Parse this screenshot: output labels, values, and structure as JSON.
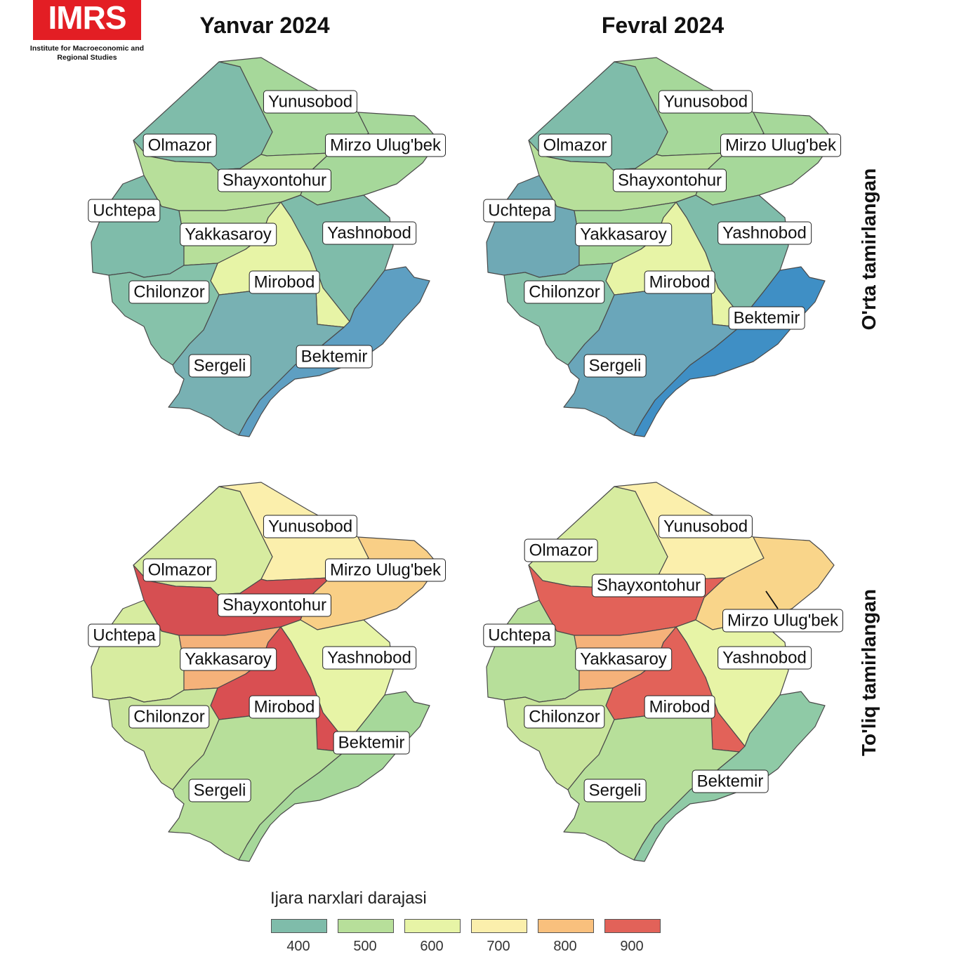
{
  "logo": {
    "text": "IMRS",
    "subtitle": "Institute for Macroeconomic and Regional Studies"
  },
  "columns": [
    "Yanvar 2024",
    "Fevral 2024"
  ],
  "rows": [
    "O'rta tamirlangan",
    "To'liq tamirlangan"
  ],
  "legend": {
    "title": "Ijara narxlari darajasi",
    "items": [
      {
        "value": "400",
        "color": "#7fbcaa"
      },
      {
        "value": "500",
        "color": "#b7df9a"
      },
      {
        "value": "600",
        "color": "#e7f4a6"
      },
      {
        "value": "700",
        "color": "#fbefac"
      },
      {
        "value": "800",
        "color": "#f9c07d"
      },
      {
        "value": "900",
        "color": "#e26259"
      }
    ]
  },
  "districts": [
    "Olmazor",
    "Yunusobod",
    "Mirzo Ulug'bek",
    "Shayxontohur",
    "Uchtepa",
    "Yakkasaroy",
    "Yashnobod",
    "Mirobod",
    "Chilonzor",
    "Bektemir",
    "Sergeli"
  ],
  "maps": [
    {
      "column": "Yanvar 2024",
      "row": "O'rta tamirlangan",
      "colors": {
        "Olmazor": "#7fbcaa",
        "Yunusobod": "#a6d89a",
        "Mirzo Ulug'bek": "#a6d89a",
        "Shayxontohur": "#b7df9a",
        "Uchtepa": "#7fbcaa",
        "Yakkasaroy": "#b7df9a",
        "Yashnobod": "#7fbcaa",
        "Mirobod": "#e7f4a6",
        "Chilonzor": "#86c2aa",
        "Bektemir": "#5e9fc2",
        "Sergeli": "#78b1b3"
      }
    },
    {
      "column": "Fevral 2024",
      "row": "O'rta tamirlangan",
      "colors": {
        "Olmazor": "#7fbcaa",
        "Yunusobod": "#a6d89a",
        "Mirzo Ulug'bek": "#a6d89a",
        "Shayxontohur": "#b7df9a",
        "Uchtepa": "#6fa9b5",
        "Yakkasaroy": "#a6d89a",
        "Yashnobod": "#7fbcaa",
        "Mirobod": "#e7f4a6",
        "Chilonzor": "#86c2aa",
        "Bektemir": "#3f8fc5",
        "Sergeli": "#6aa6ba"
      }
    },
    {
      "column": "Yanvar 2024",
      "row": "To'liq tamirlangan",
      "colors": {
        "Olmazor": "#d7ecA0",
        "Yunusobod": "#fbefac",
        "Mirzo Ulug'bek": "#f9cf86",
        "Shayxontohur": "#d64f52",
        "Uchtepa": "#d7eca0",
        "Yakkasaroy": "#f5b27a",
        "Yashnobod": "#e7f4a6",
        "Mirobod": "#d94f52",
        "Chilonzor": "#c9e59c",
        "Bektemir": "#a6d89a",
        "Sergeli": "#b7df9a"
      }
    },
    {
      "column": "Fevral 2024",
      "row": "To'liq tamirlangan",
      "colors": {
        "Olmazor": "#d7eca0",
        "Yunusobod": "#fbefac",
        "Mirzo Ulug'bek": "#f9d58a",
        "Shayxontohur": "#e26259",
        "Uchtepa": "#b7df9a",
        "Yakkasaroy": "#f5b27a",
        "Yashnobod": "#e7f4a6",
        "Mirobod": "#e26259",
        "Chilonzor": "#c9e59c",
        "Bektemir": "#8fcaa6",
        "Sergeli": "#b7df9a"
      }
    }
  ]
}
